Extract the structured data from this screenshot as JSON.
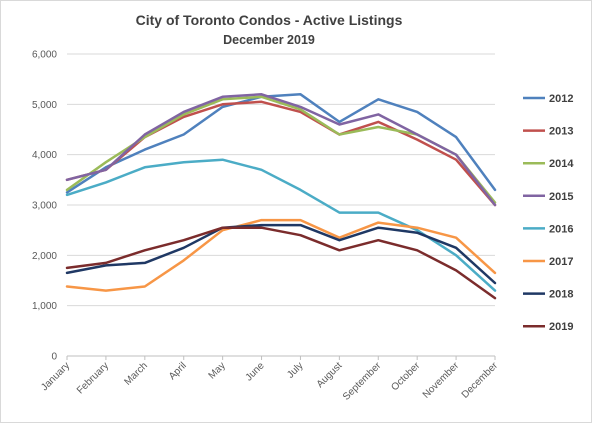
{
  "chart_data": {
    "type": "line",
    "title": "City of Toronto Condos - Active Listings",
    "subtitle": "December 2019",
    "xlabel": "",
    "ylabel": "",
    "categories": [
      "January",
      "February",
      "March",
      "April",
      "May",
      "June",
      "July",
      "August",
      "September",
      "October",
      "November",
      "December"
    ],
    "ylim": [
      0,
      6000
    ],
    "yticks": [
      0,
      1000,
      2000,
      3000,
      4000,
      5000,
      6000
    ],
    "ytick_labels": [
      "0",
      "1,000",
      "2,000",
      "3,000",
      "4,000",
      "5,000",
      "6,000"
    ],
    "grid": "horizontal",
    "legend_position": "right",
    "series": [
      {
        "name": "2012",
        "color": "#4f81bd",
        "values": [
          3250,
          3750,
          4100,
          4400,
          4950,
          5150,
          5200,
          4650,
          5100,
          4850,
          4350,
          3300
        ]
      },
      {
        "name": "2013",
        "color": "#c0504d",
        "values": [
          3500,
          3700,
          4350,
          4750,
          5000,
          5050,
          4850,
          4400,
          4650,
          4300,
          3900,
          3000
        ]
      },
      {
        "name": "2014",
        "color": "#9bbb59",
        "values": [
          3300,
          3850,
          4350,
          4800,
          5100,
          5150,
          4900,
          4400,
          4550,
          4400,
          4000,
          3050
        ]
      },
      {
        "name": "2015",
        "color": "#8064a2",
        "values": [
          3500,
          3700,
          4400,
          4850,
          5150,
          5200,
          4950,
          4600,
          4800,
          4400,
          4000,
          3000
        ]
      },
      {
        "name": "2016",
        "color": "#4bacc6",
        "values": [
          3200,
          3450,
          3750,
          3850,
          3900,
          3700,
          3300,
          2850,
          2850,
          2500,
          2000,
          1300
        ]
      },
      {
        "name": "2017",
        "color": "#f79646",
        "values": [
          1380,
          1300,
          1380,
          1900,
          2500,
          2700,
          2700,
          2350,
          2650,
          2550,
          2350,
          1650
        ]
      },
      {
        "name": "2018",
        "color": "#1f3864",
        "values": [
          1650,
          1800,
          1850,
          2150,
          2550,
          2600,
          2600,
          2300,
          2550,
          2450,
          2150,
          1450
        ]
      },
      {
        "name": "2019",
        "color": "#7b2c2c",
        "values": [
          1750,
          1850,
          2100,
          2300,
          2550,
          2550,
          2400,
          2100,
          2300,
          2100,
          1700,
          1150
        ]
      }
    ]
  }
}
